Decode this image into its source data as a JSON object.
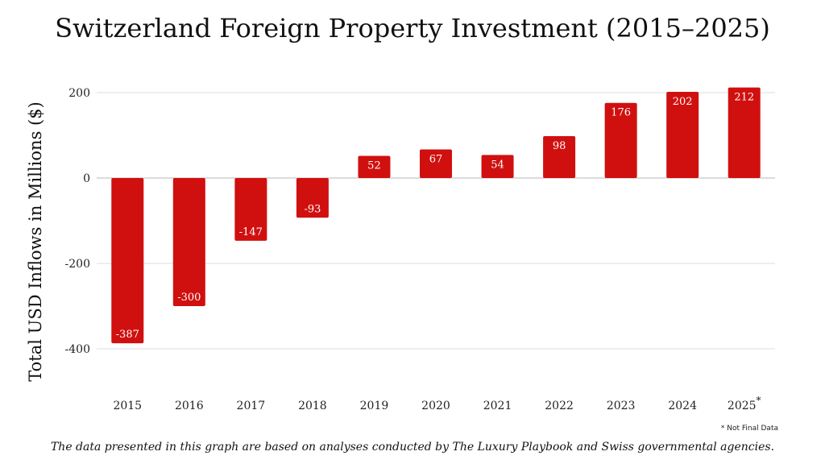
{
  "chart_data": {
    "type": "bar",
    "title": "Switzerland Foreign Property Investment (2015–2025)",
    "ylabel": "Total USD Inflows in Millions ($)",
    "xlabel": "",
    "categories": [
      "2015",
      "2016",
      "2017",
      "2018",
      "2019",
      "2020",
      "2021",
      "2022",
      "2023",
      "2024",
      "2025"
    ],
    "values": [
      -387,
      -300,
      -147,
      -93,
      52,
      67,
      54,
      98,
      176,
      202,
      212
    ],
    "value_labels": [
      "-387",
      "-300",
      "-147",
      "-93",
      "52",
      "67",
      "54",
      "98",
      "176",
      "202",
      "212"
    ],
    "yticks": [
      200,
      0,
      -200,
      -400
    ],
    "ytick_labels": [
      "200",
      "0",
      "-200",
      "-400"
    ],
    "ylim": [
      -480,
      200
    ],
    "grid": true,
    "bar_color": "#d0100f",
    "annotated_category": "2025",
    "annotation_marker": "*",
    "footnote": "* Not Final Data",
    "source_note": "The data presented in this graph are based on analyses conducted by The Luxury Playbook and Swiss governmental agencies."
  }
}
